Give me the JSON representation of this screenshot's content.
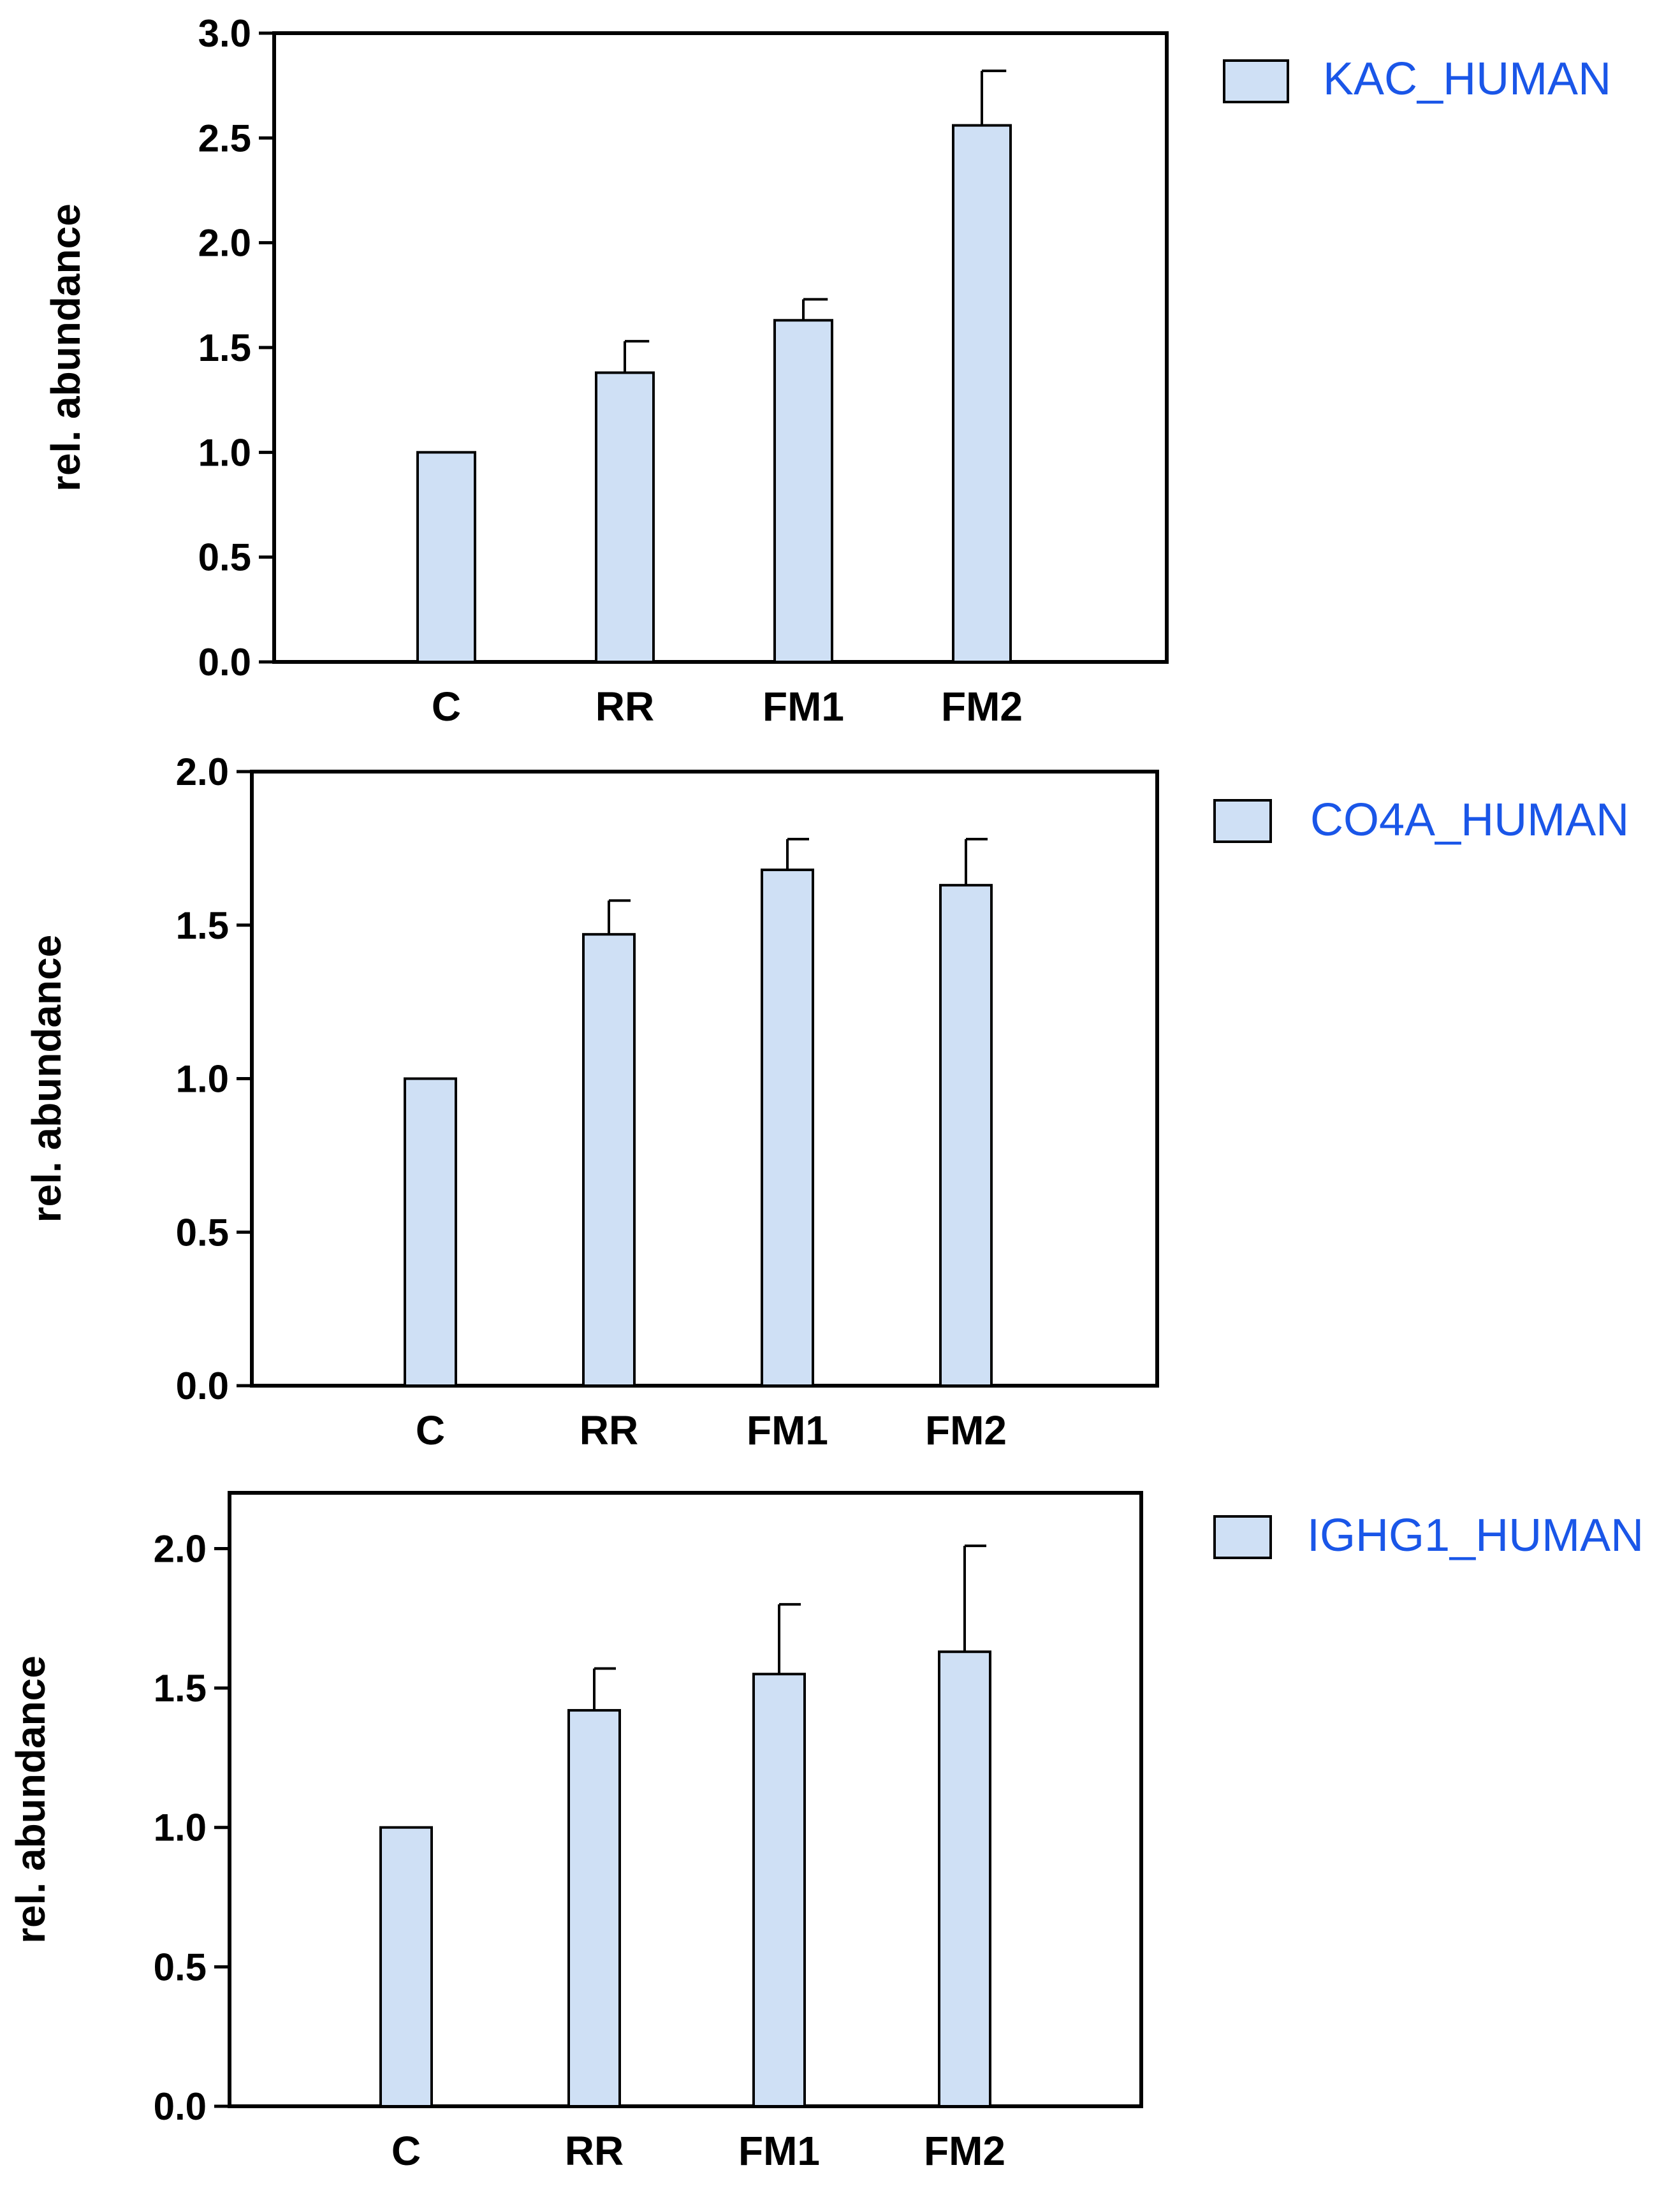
{
  "colors": {
    "bar_fill": "#cfe0f5",
    "bar_stroke": "#000000",
    "legend_text": "#1a56e8",
    "axis": "#000000"
  },
  "chart_data": [
    {
      "type": "bar",
      "categories": [
        "C",
        "RR",
        "FM1",
        "FM2"
      ],
      "series": [
        {
          "name": "KAC_HUMAN",
          "values": [
            1.0,
            1.38,
            1.63,
            2.56
          ],
          "errors": [
            0.0,
            0.15,
            0.1,
            0.26
          ]
        }
      ],
      "ylabel": "rel. abundance",
      "ylim": [
        0,
        3.0
      ],
      "yticks": [
        0.0,
        0.5,
        1.0,
        1.5,
        2.0,
        2.5,
        3.0
      ],
      "ytick_labels": [
        "0.0",
        "0.5",
        "1.0",
        "1.5",
        "2.0",
        "2.5",
        "3.0"
      ],
      "legend_position": "right"
    },
    {
      "type": "bar",
      "categories": [
        "C",
        "RR",
        "FM1",
        "FM2"
      ],
      "series": [
        {
          "name": "CO4A_HUMAN",
          "values": [
            1.0,
            1.47,
            1.68,
            1.63
          ],
          "errors": [
            0.0,
            0.11,
            0.1,
            0.15
          ]
        }
      ],
      "ylabel": "rel. abundance",
      "ylim": [
        0,
        2.0
      ],
      "yticks": [
        0.0,
        0.5,
        1.0,
        1.5,
        2.0
      ],
      "ytick_labels": [
        "0.0",
        "0.5",
        "1.0",
        "1.5",
        "2.0"
      ],
      "legend_position": "right"
    },
    {
      "type": "bar",
      "categories": [
        "C",
        "RR",
        "FM1",
        "FM2"
      ],
      "series": [
        {
          "name": "IGHG1_HUMAN",
          "values": [
            1.0,
            1.42,
            1.55,
            1.63
          ],
          "errors": [
            0.0,
            0.15,
            0.25,
            0.38
          ]
        }
      ],
      "ylabel": "rel. abundance",
      "ylim": [
        0,
        2.2
      ],
      "yticks": [
        0.0,
        0.5,
        1.0,
        1.5,
        2.0
      ],
      "ytick_labels": [
        "0.0",
        "0.5",
        "1.0",
        "1.5",
        "2.0"
      ],
      "legend_position": "right"
    }
  ]
}
